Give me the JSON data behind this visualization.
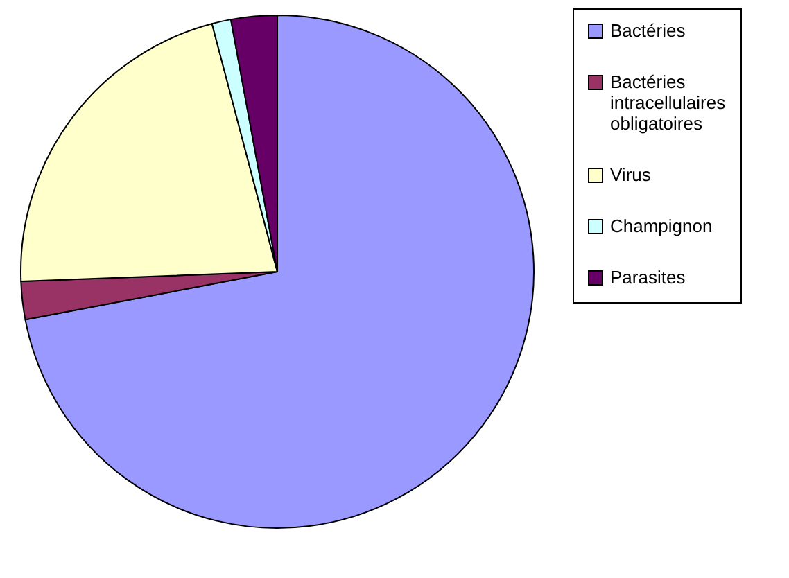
{
  "chart_data": {
    "type": "pie",
    "categories": [
      "Bactéries",
      "Bactéries intracellulaires obligatoires",
      "Virus",
      "Champignon",
      "Parasites"
    ],
    "values": [
      72,
      2.4,
      21.5,
      1.2,
      2.9
    ],
    "colors": [
      "#9999ff",
      "#993366",
      "#ffffcc",
      "#ccffff",
      "#660066"
    ],
    "legend": "right"
  }
}
